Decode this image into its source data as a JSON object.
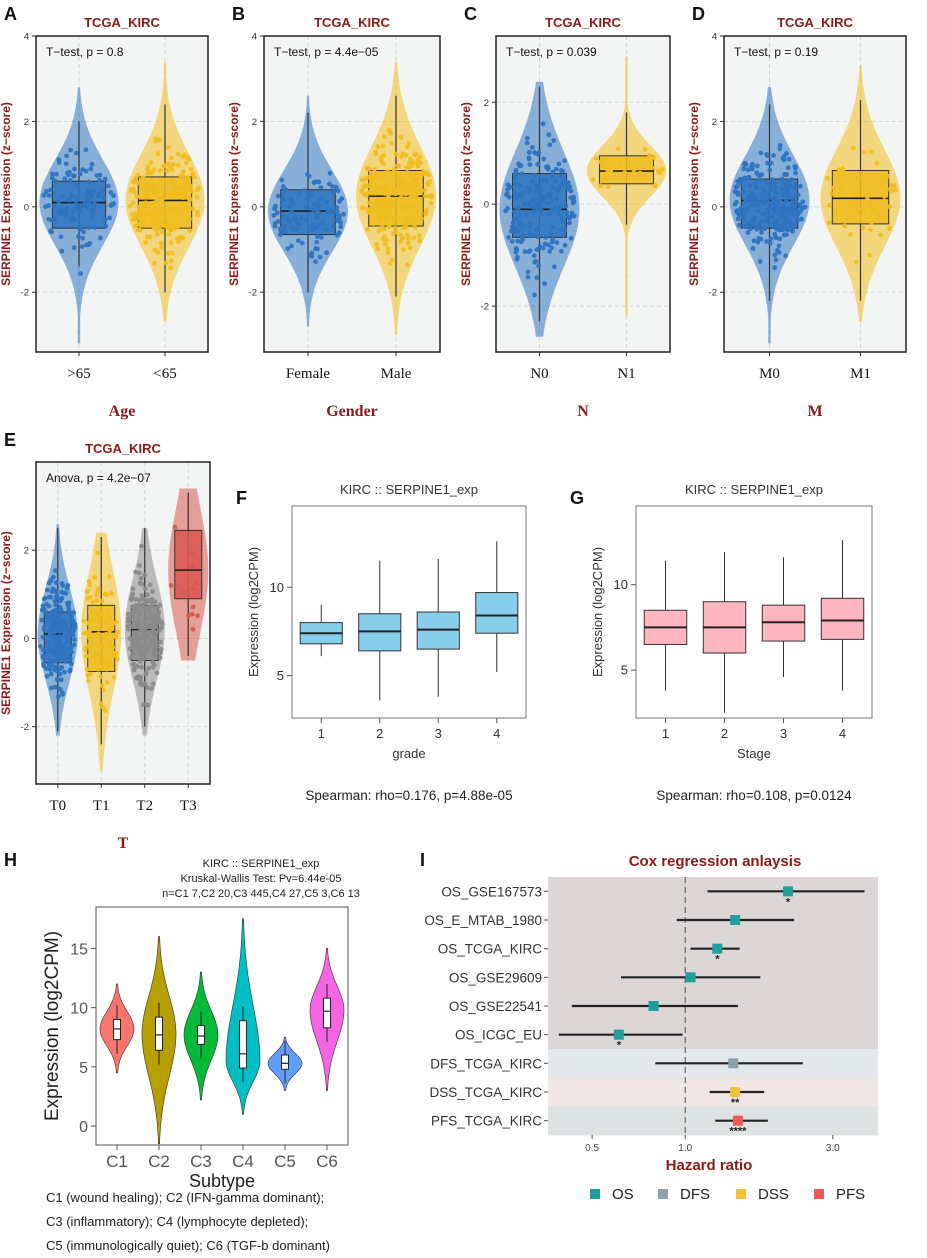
{
  "chart_data": [
    {
      "panel": "A",
      "type": "violin_box",
      "title": "TCGA_KIRC",
      "stat": "T−test, p = 0.8",
      "ylabel": "SERPINE1 Expression (z−score)",
      "xlabel": "Age",
      "ylim": [
        -3.4,
        4
      ],
      "yticks": [
        -2,
        0,
        2,
        4
      ],
      "groups": [
        {
          "name": ">65",
          "color": "#2e74c1",
          "q1": -0.5,
          "median": 0.1,
          "q3": 0.6,
          "wlo": -1.4,
          "whi": 2.0,
          "vmin": -3.2,
          "vmax": 2.8,
          "n": 110
        },
        {
          "name": "<65",
          "color": "#f0bd1f",
          "q1": -0.5,
          "median": 0.15,
          "q3": 0.7,
          "wlo": -2.0,
          "whi": 2.4,
          "vmin": -2.7,
          "vmax": 3.4,
          "n": 200
        }
      ]
    },
    {
      "panel": "B",
      "type": "violin_box",
      "title": "TCGA_KIRC",
      "stat": "T−test, p = 4.4e−05",
      "ylabel": "SERPINE1 Expression (z−score)",
      "xlabel": "Gender",
      "ylim": [
        -3.4,
        4
      ],
      "yticks": [
        -2,
        0,
        2,
        4
      ],
      "groups": [
        {
          "name": "Female",
          "color": "#2e74c1",
          "q1": -0.65,
          "median": -0.1,
          "q3": 0.4,
          "wlo": -2.0,
          "whi": 2.2,
          "vmin": -2.8,
          "vmax": 2.6,
          "n": 110
        },
        {
          "name": "Male",
          "color": "#f0bd1f",
          "q1": -0.45,
          "median": 0.25,
          "q3": 0.85,
          "wlo": -2.1,
          "whi": 2.6,
          "vmin": -3.0,
          "vmax": 3.4,
          "n": 200
        }
      ]
    },
    {
      "panel": "C",
      "type": "violin_box",
      "title": "TCGA_KIRC",
      "stat": "T−test, p = 0.039",
      "ylabel": "SERPINE1 Expression (z−score)",
      "xlabel": "N",
      "ylim": [
        -2.9,
        3.3
      ],
      "yticks": [
        -2,
        0,
        2
      ],
      "groups": [
        {
          "name": "N0",
          "color": "#2e74c1",
          "q1": -0.65,
          "median": -0.1,
          "q3": 0.6,
          "wlo": -2.3,
          "whi": 2.3,
          "vmin": -2.6,
          "vmax": 2.4,
          "n": 200
        },
        {
          "name": "N1",
          "color": "#f0bd1f",
          "q1": 0.4,
          "median": 0.65,
          "q3": 0.95,
          "wlo": -0.4,
          "whi": 1.8,
          "vmin": -2.2,
          "vmax": 2.9,
          "n": 25
        }
      ]
    },
    {
      "panel": "D",
      "type": "violin_box",
      "title": "TCGA_KIRC",
      "stat": "T−test, p = 0.19",
      "ylabel": "SERPINE1 Expression (z−score)",
      "xlabel": "M",
      "ylim": [
        -3.4,
        4
      ],
      "yticks": [
        -2,
        0,
        2,
        4
      ],
      "groups": [
        {
          "name": "M0",
          "color": "#2e74c1",
          "q1": -0.5,
          "median": 0.15,
          "q3": 0.65,
          "wlo": -2.2,
          "whi": 2.4,
          "vmin": -3.2,
          "vmax": 2.8,
          "n": 250
        },
        {
          "name": "M1",
          "color": "#f0bd1f",
          "q1": -0.4,
          "median": 0.2,
          "q3": 0.85,
          "wlo": -2.2,
          "whi": 2.5,
          "vmin": -2.7,
          "vmax": 3.3,
          "n": 60
        }
      ]
    },
    {
      "panel": "E",
      "type": "violin_box",
      "title": "TCGA_KIRC",
      "stat": "Anova, p = 4.2e−07",
      "ylabel": "SERPINE1 Expression (z−score)",
      "xlabel": "T",
      "ylim": [
        -3.3,
        4
      ],
      "yticks": [
        -2,
        0,
        2
      ],
      "groups": [
        {
          "name": "T0",
          "color": "#2e74c1",
          "q1": -0.55,
          "median": 0.1,
          "q3": 0.6,
          "wlo": -2.1,
          "whi": 2.5,
          "vmin": -2.2,
          "vmax": 2.6,
          "n": 200
        },
        {
          "name": "T1",
          "color": "#f0bd1f",
          "q1": -0.75,
          "median": 0.15,
          "q3": 0.75,
          "wlo": -2.4,
          "whi": 2.3,
          "vmin": -3.0,
          "vmax": 2.4,
          "n": 90
        },
        {
          "name": "T2",
          "color": "#8a8a8a",
          "q1": -0.5,
          "median": 0.2,
          "q3": 0.75,
          "wlo": -2.0,
          "whi": 2.5,
          "vmin": -2.2,
          "vmax": 2.5,
          "n": 170
        },
        {
          "name": "T3",
          "color": "#d9574f",
          "q1": 0.9,
          "median": 1.55,
          "q3": 2.45,
          "wlo": -0.4,
          "whi": 3.3,
          "vmin": -0.5,
          "vmax": 3.4,
          "n": 12
        }
      ]
    },
    {
      "panel": "F",
      "type": "box",
      "title": "KIRC :: SERPINE1_exp",
      "ylabel": "Expression (log2CPM)",
      "xlabel": "grade",
      "footer": "Spearman: rho=0.176, p=4.88e-05",
      "ylim": [
        2.6,
        14.6
      ],
      "yticks": [
        5,
        10
      ],
      "color": "#87ceeb",
      "categories": [
        "1",
        "2",
        "3",
        "4"
      ],
      "boxes": [
        {
          "wlo": 6.1,
          "q1": 6.8,
          "median": 7.4,
          "q3": 8.0,
          "whi": 9.0
        },
        {
          "wlo": 3.6,
          "q1": 6.4,
          "median": 7.5,
          "q3": 8.5,
          "whi": 11.5
        },
        {
          "wlo": 3.8,
          "q1": 6.5,
          "median": 7.6,
          "q3": 8.6,
          "whi": 11.6
        },
        {
          "wlo": 5.2,
          "q1": 7.4,
          "median": 8.4,
          "q3": 9.7,
          "whi": 12.6
        }
      ]
    },
    {
      "panel": "G",
      "type": "box",
      "title": "KIRC :: SERPINE1_exp",
      "ylabel": "Expression (log2CPM)",
      "xlabel": "Stage",
      "footer": "Spearman: rho=0.108, p=0.0124",
      "ylim": [
        2.2,
        14.6
      ],
      "yticks": [
        5,
        10
      ],
      "color": "#ffb6c1",
      "categories": [
        "1",
        "2",
        "3",
        "4"
      ],
      "boxes": [
        {
          "wlo": 3.8,
          "q1": 6.5,
          "median": 7.5,
          "q3": 8.5,
          "whi": 11.4
        },
        {
          "wlo": 2.5,
          "q1": 6.0,
          "median": 7.5,
          "q3": 9.0,
          "whi": 11.9
        },
        {
          "wlo": 4.6,
          "q1": 6.7,
          "median": 7.8,
          "q3": 8.8,
          "whi": 11.6
        },
        {
          "wlo": 3.8,
          "q1": 6.8,
          "median": 7.9,
          "q3": 9.2,
          "whi": 12.6
        }
      ]
    },
    {
      "panel": "H",
      "type": "violin",
      "title_lines": [
        "KIRC :: SERPINE1_exp",
        "Kruskal-Wallis Test: Pv=6.44e-05",
        "n=C1 7,C2 20,C3 445,C4 27,C5 3,C6 13"
      ],
      "ylabel": "Expression (log2CPM)",
      "xlabel": "Subtype",
      "ylim": [
        -1.6,
        18.5
      ],
      "yticks": [
        0,
        5,
        10,
        15
      ],
      "categories": [
        "C1",
        "C2",
        "C3",
        "C4",
        "C5",
        "C6"
      ],
      "violins": [
        {
          "color": "#f8766d",
          "vmin": 4.5,
          "vmax": 12.0,
          "q1": 7.3,
          "median": 8.2,
          "q3": 9.0,
          "mode": 8.2
        },
        {
          "color": "#b79f00",
          "vmin": -1.5,
          "vmax": 16.0,
          "q1": 6.4,
          "median": 7.7,
          "q3": 9.2,
          "mode": 7.8
        },
        {
          "color": "#00ba38",
          "vmin": 2.2,
          "vmax": 13.0,
          "q1": 6.9,
          "median": 7.6,
          "q3": 8.5,
          "mode": 7.7
        },
        {
          "color": "#00bfc4",
          "vmin": 1.0,
          "vmax": 17.5,
          "q1": 4.9,
          "median": 6.1,
          "q3": 8.9,
          "mode": 5.5
        },
        {
          "color": "#619cff",
          "vmin": 3.0,
          "vmax": 7.5,
          "q1": 4.8,
          "median": 5.3,
          "q3": 6.0,
          "mode": 5.3
        },
        {
          "color": "#f564e3",
          "vmin": 3.0,
          "vmax": 15.0,
          "q1": 8.3,
          "median": 9.7,
          "q3": 10.8,
          "mode": 9.8
        }
      ],
      "notes": [
        "C1 (wound healing); C2 (IFN-gamma dominant);",
        "C3 (inflammatory); C4 (lymphocyte depleted);",
        "C5 (immunologically quiet); C6 (TGF-b dominant)"
      ]
    },
    {
      "panel": "I",
      "type": "forest",
      "title": "Cox regression anlaysis",
      "xlabel": "Hazard ratio",
      "xscale": "log",
      "xlim": [
        0.36,
        4.2
      ],
      "xticks": [
        0.5,
        1.0,
        3.0
      ],
      "xticklabels": [
        "0.5",
        "1.0",
        "3.0"
      ],
      "refline": 1.0,
      "rows": [
        {
          "label": "OS_GSE167573",
          "hr": 2.15,
          "lo": 1.18,
          "hi": 3.8,
          "sig": "*",
          "group": "OS"
        },
        {
          "label": "OS_E_MTAB_1980",
          "hr": 1.45,
          "lo": 0.94,
          "hi": 2.25,
          "sig": "",
          "group": "OS"
        },
        {
          "label": "OS_TCGA_KIRC",
          "hr": 1.27,
          "lo": 1.04,
          "hi": 1.5,
          "sig": "*",
          "group": "OS"
        },
        {
          "label": "OS_GSE29609",
          "hr": 1.04,
          "lo": 0.62,
          "hi": 1.75,
          "sig": "",
          "group": "OS"
        },
        {
          "label": "OS_GSE22541",
          "hr": 0.79,
          "lo": 0.43,
          "hi": 1.48,
          "sig": "",
          "group": "OS"
        },
        {
          "label": "OS_ICGC_EU",
          "hr": 0.61,
          "lo": 0.39,
          "hi": 0.98,
          "sig": "*",
          "group": "OS"
        },
        {
          "label": "DFS_TCGA_KIRC",
          "hr": 1.43,
          "lo": 0.8,
          "hi": 2.4,
          "sig": "",
          "group": "DFS"
        },
        {
          "label": "DSS_TCGA_KIRC",
          "hr": 1.45,
          "lo": 1.2,
          "hi": 1.8,
          "sig": "**",
          "group": "DSS"
        },
        {
          "label": "PFS_TCGA_KIRC",
          "hr": 1.48,
          "lo": 1.25,
          "hi": 1.85,
          "sig": "****",
          "group": "PFS"
        }
      ],
      "groups": {
        "OS": {
          "color": "#1f9e9b",
          "band": "#dcd6d6"
        },
        "DFS": {
          "color": "#8fa0a8",
          "band": "#e3e9ea"
        },
        "DSS": {
          "color": "#f3c23c",
          "band": "#f1e6e6"
        },
        "PFS": {
          "color": "#ee5a5a",
          "band": "#dde3e3"
        }
      },
      "legend": [
        "OS",
        "DFS",
        "DSS",
        "PFS"
      ]
    }
  ]
}
